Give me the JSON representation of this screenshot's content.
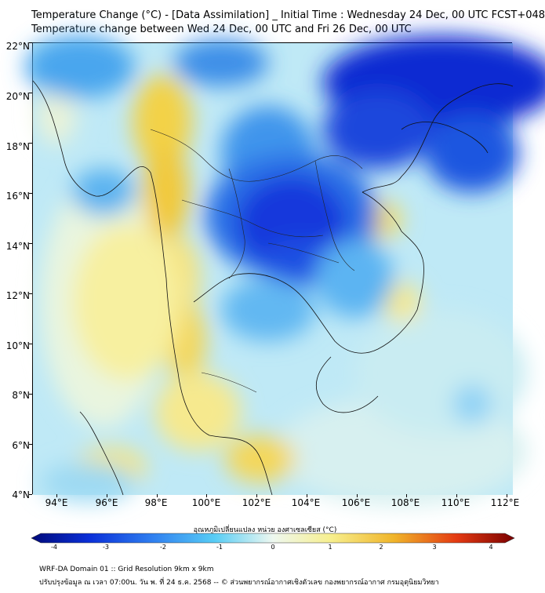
{
  "title": {
    "line1": "Temperature Change (°C) - [Data Assimilation] _ Initial Time : Wednesday 24 Dec, 00 UTC FCST+048",
    "line2": "Temperature change between Wed 24 Dec, 00 UTC and Fri 26 Dec, 00 UTC"
  },
  "axes": {
    "lat_labels": [
      "22°N",
      "20°N",
      "18°N",
      "16°N",
      "14°N",
      "12°N",
      "10°N",
      "8°N",
      "6°N",
      "4°N"
    ],
    "lon_labels": [
      "94°E",
      "96°E",
      "98°E",
      "100°E",
      "102°E",
      "104°E",
      "106°E",
      "108°E",
      "110°E",
      "112°E"
    ]
  },
  "colorbar": {
    "title": "อุณหภูมิเปลี่ยนแปลง หน่วย องศาเซลเซียส (°C)",
    "ticks": [
      "-4",
      "-3",
      "-2",
      "-1",
      "0",
      "1",
      "2",
      "3",
      "4"
    ],
    "min": -4,
    "max": 4
  },
  "footer": {
    "line1": "WRF-DA Domain 01 :: Grid Resolution 9km x 9km",
    "line2": "ปรับปรุงข้อมูล ณ เวลา 07:00น. วัน พ. ที่ 24 ธ.ค. 2568 -- © ส่วนพยากรณ์อากาศเชิงตัวเลข กองพยากรณ์อากาศ กรมอุตุนิยมวิทยา"
  },
  "colors": {
    "strong_cooling": "#0a2fd8",
    "moderate_cooling": "#2f8ff0",
    "slight_cooling": "#7fd0f5",
    "neutral": "#eaf6f4",
    "slight_warming": "#f6ef9a",
    "moderate_warming": "#f3cf3c"
  }
}
